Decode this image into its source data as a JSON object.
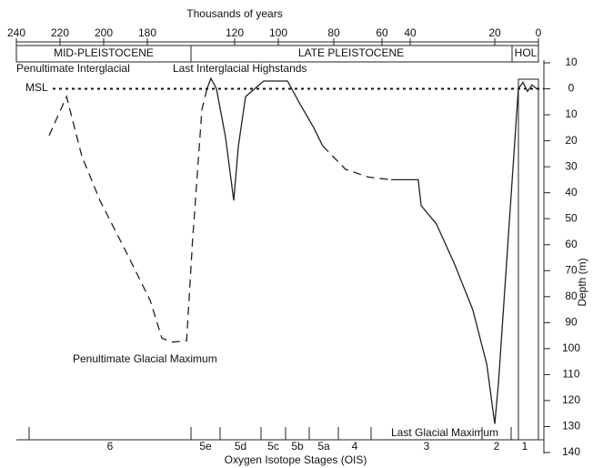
{
  "chart_data": {
    "type": "line",
    "x_label": "Thousands of years",
    "y_label": "Depth (m)",
    "bottom_label": "Oxygen Isotope Stages (OIS)",
    "xlim": [
      240,
      0
    ],
    "xticks": [
      240,
      220,
      200,
      180,
      120,
      100,
      80,
      60,
      40,
      20,
      0
    ],
    "ylim": [
      -10,
      140
    ],
    "yticks": [
      {
        "value": -10,
        "label": "10"
      },
      0,
      10,
      20,
      30,
      40,
      50,
      60,
      70,
      80,
      90,
      100,
      110,
      120,
      130,
      140
    ],
    "periods": [
      "MID-PLEISTOCENE",
      "LATE PLEISTOCENE",
      "HOL"
    ],
    "stages": [
      "6",
      "5e",
      "5d",
      "5c",
      "5b",
      "5a",
      "4",
      "3",
      "2",
      "1"
    ],
    "annotations": [
      "Penultimate Interglacial",
      "Last Interglacial Highstands",
      "MSL",
      "Penultimate Glacial Maximum",
      "Last Glacial Maximum"
    ],
    "series": [
      {
        "color": "#222222",
        "dashed": true,
        "x": [
          225,
          217,
          210,
          201.7,
          189,
          178,
          170,
          162.5,
          153,
          149,
          142.5,
          139
        ],
        "values": [
          18,
          3,
          26,
          43,
          64,
          81.5,
          96,
          97.5,
          97,
          59,
          8,
          0
        ]
      },
      {
        "color": "#222222",
        "dashed": false,
        "x": [
          139,
          136.3,
          132.5,
          126.3,
          120.6,
          118.3,
          115,
          106.7,
          96.7,
          92.1,
          87.2,
          84
        ],
        "values": [
          0,
          -4,
          0,
          18.5,
          43,
          22,
          3,
          -3,
          -3,
          6,
          15,
          22
        ]
      },
      {
        "color": "#222222",
        "dashed": true,
        "x": [
          84,
          75.1,
          65.7,
          53.5
        ],
        "values": [
          22,
          31,
          34,
          35
        ]
      },
      {
        "color": "#222222",
        "dashed": false,
        "x": [
          53.5,
          38.1,
          37.4,
          33.8,
          29.5,
          25.2,
          21.9,
          20,
          18.3,
          9.2,
          7.1,
          5,
          2.9,
          0.8
        ],
        "values": [
          35,
          35,
          45,
          52,
          67.5,
          85,
          106,
          129,
          113,
          0,
          -2.5,
          1,
          -1.5,
          0
        ]
      }
    ]
  }
}
